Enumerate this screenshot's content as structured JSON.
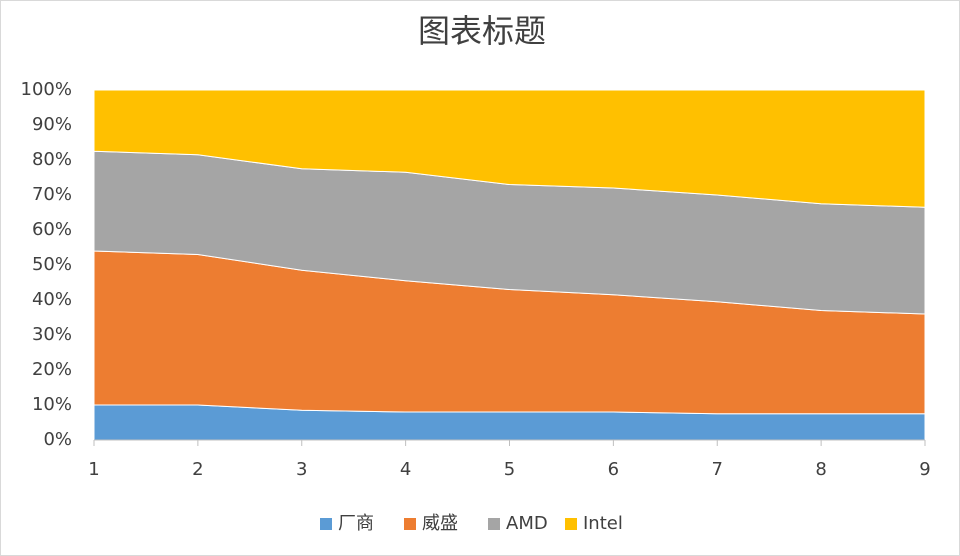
{
  "chart_data": {
    "type": "stacked-area",
    "title": "图表标题",
    "x": [
      1,
      2,
      3,
      4,
      5,
      6,
      7,
      8,
      9
    ],
    "xlim": [
      1,
      9
    ],
    "xticks": [
      1,
      2,
      3,
      4,
      5,
      6,
      7,
      8,
      9
    ],
    "ylim": [
      0,
      100
    ],
    "yticks": [
      {
        "value": 0,
        "label": "0%"
      },
      {
        "value": 10,
        "label": "10%"
      },
      {
        "value": 20,
        "label": "20%"
      },
      {
        "value": 30,
        "label": "30%"
      },
      {
        "value": 40,
        "label": "40%"
      },
      {
        "value": 50,
        "label": "50%"
      },
      {
        "value": 60,
        "label": "60%"
      },
      {
        "value": 70,
        "label": "70%"
      },
      {
        "value": 80,
        "label": "80%"
      },
      {
        "value": 90,
        "label": "90%"
      },
      {
        "value": 100,
        "label": "100%"
      }
    ],
    "grid": false,
    "legend": "bottom",
    "series": [
      {
        "name": "厂商",
        "color": "#5b9bd5",
        "values": [
          10,
          10,
          8.5,
          8,
          8,
          8,
          7.5,
          7.5,
          7.5
        ]
      },
      {
        "name": "威盛",
        "color": "#ed7d31",
        "values": [
          44,
          43,
          40,
          37.5,
          35,
          33.5,
          32,
          29.5,
          28.5
        ]
      },
      {
        "name": "AMD",
        "color": "#a5a5a5",
        "values": [
          28.5,
          28.5,
          29,
          31,
          30,
          30.5,
          30.5,
          30.5,
          30.5
        ]
      },
      {
        "name": "Intel",
        "color": "#ffc000",
        "values": [
          17.5,
          18.5,
          22.5,
          23.5,
          27,
          28,
          30,
          32.5,
          33.5
        ]
      }
    ]
  }
}
